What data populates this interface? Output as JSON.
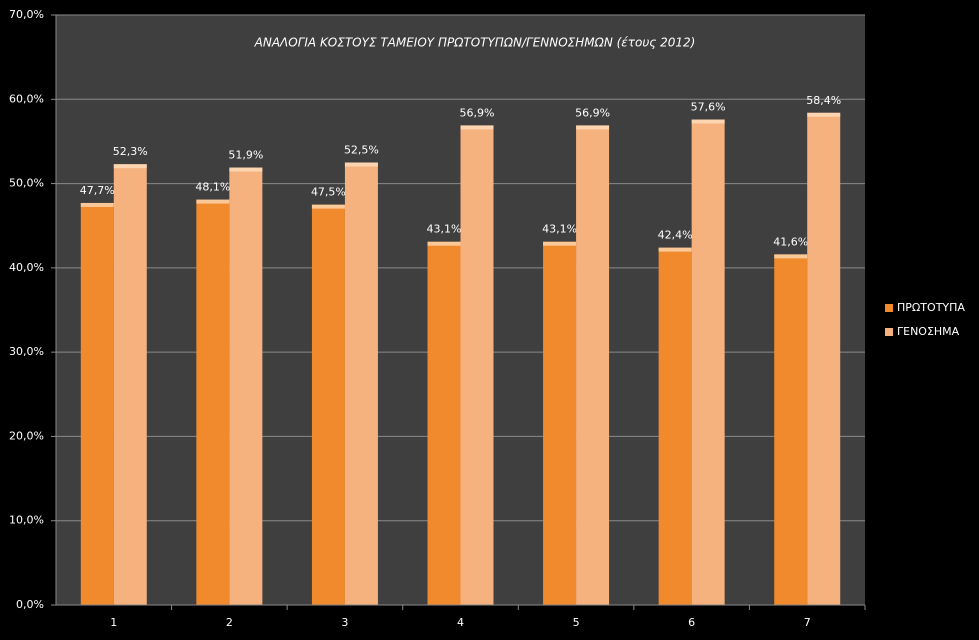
{
  "chart_data": {
    "type": "bar",
    "title": "ΑΝΑΛΟΓΙΑ ΚΟΣΤΟΥΣ ΤΑΜΕΙΟΥ ΠΡΩΤΟΤΥΠΩΝ/ΓΕΝΝΟΣΗΜΩΝ (έτους 2012)",
    "categories": [
      "1",
      "2",
      "3",
      "4",
      "5",
      "6",
      "7"
    ],
    "series": [
      {
        "name": "ΠΡΩΤΟΤΥΠΑ",
        "color": "#f08a2c",
        "values": [
          47.7,
          48.1,
          47.5,
          43.1,
          43.1,
          42.4,
          41.6
        ],
        "value_labels": [
          "47,7%",
          "48,1%",
          "47,5%",
          "43,1%",
          "43,1%",
          "42,4%",
          "41,6%"
        ]
      },
      {
        "name": "ΓΕΝΟΣΗΜΑ",
        "color": "#f5b27f",
        "values": [
          52.3,
          51.9,
          52.5,
          56.9,
          56.9,
          57.6,
          58.4
        ],
        "value_labels": [
          "52,3%",
          "51,9%",
          "52,5%",
          "56,9%",
          "56,9%",
          "57,6%",
          "58,4%"
        ]
      }
    ],
    "ylim": [
      0,
      70
    ],
    "yticks": [
      {
        "value": 0,
        "label": "0,0%"
      },
      {
        "value": 10,
        "label": "10,0%"
      },
      {
        "value": 20,
        "label": "20,0%"
      },
      {
        "value": 30,
        "label": "30,0%"
      },
      {
        "value": 40,
        "label": "40,0%"
      },
      {
        "value": 50,
        "label": "50,0%"
      },
      {
        "value": 60,
        "label": "60,0%"
      },
      {
        "value": 70,
        "label": "70,0%"
      }
    ],
    "grid": true,
    "legend": "right"
  }
}
